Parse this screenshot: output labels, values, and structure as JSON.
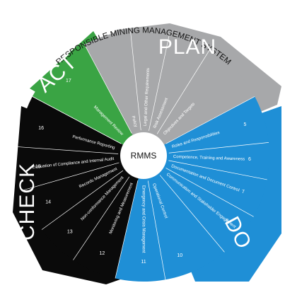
{
  "title": "RESPONSIBLE MINING MANAGEMENT SYSTEM",
  "center": "RMMS",
  "phases": [
    {
      "label": "PLAN"
    },
    {
      "label": "DO"
    },
    {
      "label": "CHECK"
    },
    {
      "label": "ACT"
    }
  ],
  "elements": [
    {
      "label": "Management Review",
      "number": 17
    },
    {
      "label": "Policy"
    },
    {
      "label": "Legal and Other Requirements"
    },
    {
      "label": "Risk Assessment"
    },
    {
      "label": "Objectives and Targets"
    },
    {
      "label": "Roles and Responsibilities",
      "number": 5
    },
    {
      "label": "Competence, Training and Awareness",
      "number": 6
    },
    {
      "label": "Documentation and Document Control",
      "number": 7
    },
    {
      "label": "Communication and Stakeholder Engagement",
      "number": 8
    },
    {
      "label": "Operational Control",
      "number": 10
    },
    {
      "label": "Emergency and Crisis Management",
      "number": 11
    },
    {
      "label": "Monitoring and Measurement",
      "number": 12
    },
    {
      "label": "Non-conformance Management",
      "number": 13
    },
    {
      "label": "Records Management",
      "number": 14
    },
    {
      "label": "Evaluation of Compliance and Internal Audit",
      "number": 15
    },
    {
      "label": "Performance Reporting",
      "number": 16
    }
  ]
}
